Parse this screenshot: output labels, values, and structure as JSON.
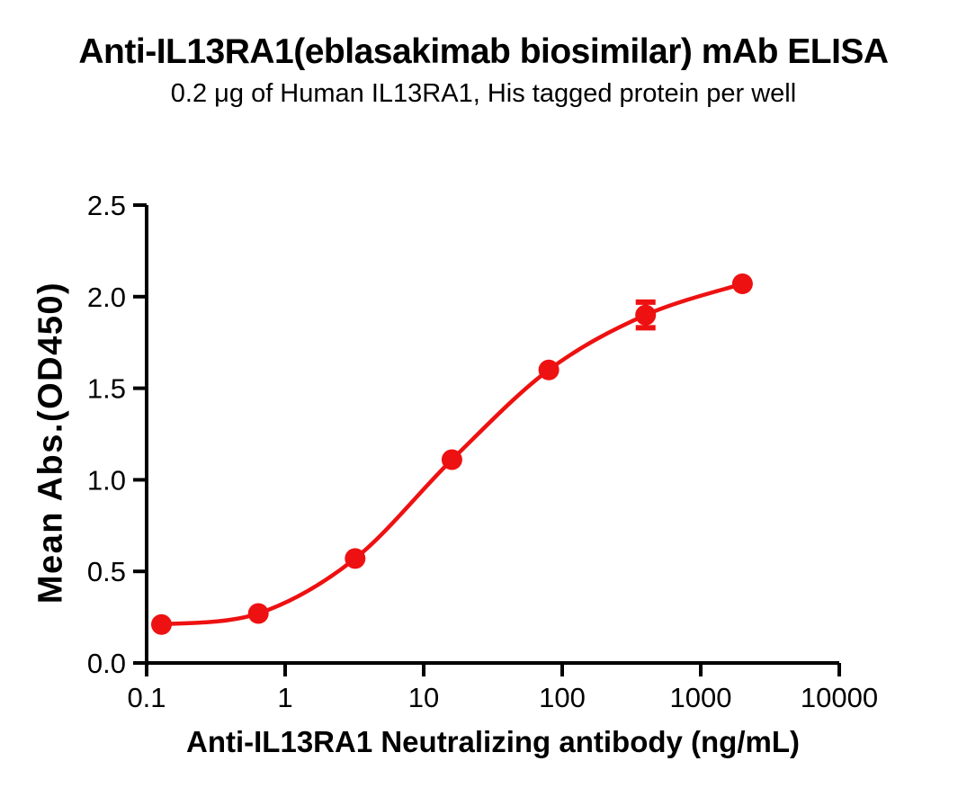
{
  "header": {
    "title": "Anti-IL13RA1(eblasakimab biosimilar) mAb ELISA",
    "subtitle": "0.2 μg of Human IL13RA1, His tagged protein per well"
  },
  "chart_data": {
    "type": "scatter",
    "curve": "sigmoidal-fit-line",
    "title": "Anti-IL13RA1(eblasakimab biosimilar) mAb ELISA",
    "subtitle": "0.2 μg of Human IL13RA1, His tagged protein per well",
    "xlabel": "Anti-IL13RA1 Neutralizing antibody (ng/mL)",
    "ylabel": "Mean Abs.(OD450)",
    "x_scale": "log10",
    "xlim": [
      0.1,
      10000
    ],
    "ylim": [
      0.0,
      2.5
    ],
    "x_ticks": [
      0.1,
      1,
      10,
      100,
      1000,
      10000
    ],
    "x_tick_labels": [
      "0.1",
      "1",
      "10",
      "100",
      "1000",
      "10000"
    ],
    "y_ticks": [
      0.0,
      0.5,
      1.0,
      1.5,
      2.0,
      2.5
    ],
    "y_tick_labels": [
      "0.0",
      "0.5",
      "1.0",
      "1.5",
      "2.0",
      "2.5"
    ],
    "grid": false,
    "legend": "none",
    "series": [
      {
        "marker": "circle",
        "color": "#ee1111",
        "x": [
          0.128,
          0.64,
          3.2,
          16,
          80,
          400,
          2000
        ],
        "y": [
          0.21,
          0.27,
          0.57,
          1.11,
          1.6,
          1.9,
          2.07
        ],
        "y_err": [
          0,
          0,
          0,
          0,
          0,
          0.07,
          0
        ]
      }
    ]
  },
  "colors": {
    "series_red": "#ee1111",
    "axis": "#000000",
    "text": "#000000",
    "background": "#ffffff"
  }
}
